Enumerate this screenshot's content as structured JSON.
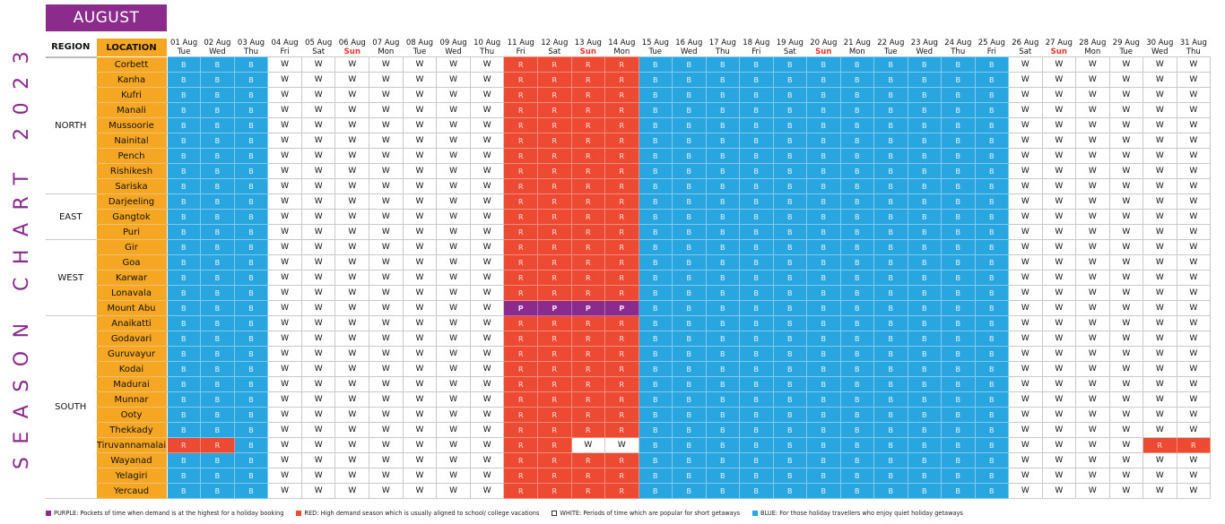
{
  "title": "SEASON CHART 2023",
  "month": "AUGUST",
  "headers": {
    "region": "REGION",
    "location": "LOCATION"
  },
  "colors": {
    "purple": "#8b2c8d",
    "red": "#ec4a32",
    "white": "#ffffff",
    "blue": "#29a6e0",
    "location_bg": "#f5a623"
  },
  "days": [
    {
      "date": "01 Aug",
      "weekday": "Tue"
    },
    {
      "date": "02 Aug",
      "weekday": "Wed"
    },
    {
      "date": "03 Aug",
      "weekday": "Thu"
    },
    {
      "date": "04 Aug",
      "weekday": "Fri"
    },
    {
      "date": "05 Aug",
      "weekday": "Sat"
    },
    {
      "date": "06 Aug",
      "weekday": "Sun"
    },
    {
      "date": "07 Aug",
      "weekday": "Mon"
    },
    {
      "date": "08 Aug",
      "weekday": "Tue"
    },
    {
      "date": "09 Aug",
      "weekday": "Wed"
    },
    {
      "date": "10 Aug",
      "weekday": "Thu"
    },
    {
      "date": "11 Aug",
      "weekday": "Fri"
    },
    {
      "date": "12 Aug",
      "weekday": "Sat"
    },
    {
      "date": "13 Aug",
      "weekday": "Sun"
    },
    {
      "date": "14 Aug",
      "weekday": "Mon"
    },
    {
      "date": "15 Aug",
      "weekday": "Tue"
    },
    {
      "date": "16 Aug",
      "weekday": "Wed"
    },
    {
      "date": "17 Aug",
      "weekday": "Thu"
    },
    {
      "date": "18 Aug",
      "weekday": "Fri"
    },
    {
      "date": "19 Aug",
      "weekday": "Sat"
    },
    {
      "date": "20 Aug",
      "weekday": "Sun"
    },
    {
      "date": "21 Aug",
      "weekday": "Mon"
    },
    {
      "date": "22 Aug",
      "weekday": "Tue"
    },
    {
      "date": "23 Aug",
      "weekday": "Wed"
    },
    {
      "date": "24 Aug",
      "weekday": "Thu"
    },
    {
      "date": "25 Aug",
      "weekday": "Fri"
    },
    {
      "date": "26 Aug",
      "weekday": "Sat"
    },
    {
      "date": "27 Aug",
      "weekday": "Sun"
    },
    {
      "date": "28 Aug",
      "weekday": "Mon"
    },
    {
      "date": "29 Aug",
      "weekday": "Tue"
    },
    {
      "date": "30 Aug",
      "weekday": "Wed"
    },
    {
      "date": "31 Aug",
      "weekday": "Thu"
    }
  ],
  "regions": [
    {
      "name": "NORTH",
      "locations": [
        {
          "name": "Corbett",
          "codes": "BBBWWWWWWWRRRRBBBBBBBBBBBWWWWWW"
        },
        {
          "name": "Kanha",
          "codes": "BBBWWWWWWWRRRRBBBBBBBBBBBWWWWWW"
        },
        {
          "name": "Kufri",
          "codes": "BBBWWWWWWWRRRRBBBBBBBBBBBWWWWWW"
        },
        {
          "name": "Manali",
          "codes": "BBBWWWWWWWRRRRBBBBBBBBBBBWWWWWW"
        },
        {
          "name": "Mussoorie",
          "codes": "BBBWWWWWWWRRRRBBBBBBBBBBBWWWWWW"
        },
        {
          "name": "Nainital",
          "codes": "BBBWWWWWWWRRRRBBBBBBBBBBBWWWWWW"
        },
        {
          "name": "Pench",
          "codes": "BBBWWWWWWWRRRRBBBBBBBBBBBWWWWWW"
        },
        {
          "name": "Rishikesh",
          "codes": "BBBWWWWWWWRRRRBBBBBBBBBBBWWWWWW"
        },
        {
          "name": "Sariska",
          "codes": "BBBWWWWWWWRRRRBBBBBBBBBBBWWWWWW"
        }
      ]
    },
    {
      "name": "EAST",
      "locations": [
        {
          "name": "Darjeeling",
          "codes": "BBBWWWWWWWRRRRBBBBBBBBBBBWWWWWW"
        },
        {
          "name": "Gangtok",
          "codes": "BBBWWWWWWWRRRRBBBBBBBBBBBWWWWWW"
        },
        {
          "name": "Puri",
          "codes": "BBBWWWWWWWRRRRBBBBBBBBBBBWWWWWW"
        }
      ]
    },
    {
      "name": "WEST",
      "locations": [
        {
          "name": "Gir",
          "codes": "BBBWWWWWWWRRRRBBBBBBBBBBBWWWWWW"
        },
        {
          "name": "Goa",
          "codes": "BBBWWWWWWWRRRRBBBBBBBBBBBWWWWWW"
        },
        {
          "name": "Karwar",
          "codes": "BBBWWWWWWWRRRRBBBBBBBBBBBWWWWWW"
        },
        {
          "name": "Lonavala",
          "codes": "BBBWWWWWWWRRRRBBBBBBBBBBBWWWWWW"
        },
        {
          "name": "Mount Abu",
          "codes": "BBBWWWWWWWPPPPBBBBBBBBBBBWWWWWW"
        }
      ]
    },
    {
      "name": "SOUTH",
      "locations": [
        {
          "name": "Anaikatti",
          "codes": "BBBWWWWWWWRRRRBBBBBBBBBBBWWWWWW"
        },
        {
          "name": "Godavari",
          "codes": "BBBWWWWWWWRRRRBBBBBBBBBBBWWWWWW"
        },
        {
          "name": "Guruvayur",
          "codes": "BBBWWWWWWWRRRRBBBBBBBBBBBWWWWWW"
        },
        {
          "name": "Kodai",
          "codes": "BBBWWWWWWWRRRRBBBBBBBBBBBWWWWWW"
        },
        {
          "name": "Madurai",
          "codes": "BBBWWWWWWWRRRRBBBBBBBBBBBWWWWWW"
        },
        {
          "name": "Munnar",
          "codes": "BBBWWWWWWWRRRRBBBBBBBBBBBWWWWWW"
        },
        {
          "name": "Ooty",
          "codes": "BBBWWWWWWWRRRRBBBBBBBBBBBWWWWWW"
        },
        {
          "name": "Thekkady",
          "codes": "BBBWWWWWWWRRRRBBBBBBBBBBBWWWWWW"
        },
        {
          "name": "Tiruvannamalai",
          "codes": "RRBWWWWWWWRRWWBBBBBBBBBBBWWWWRR"
        },
        {
          "name": "Wayanad",
          "codes": "BBBWWWWWWWRRRRBBBBBBBBBBBWWWWWW"
        },
        {
          "name": "Yelagiri",
          "codes": "BBBWWWWWWWRRRRBBBBBBBBBBBWWWWWW"
        },
        {
          "name": "Yercaud",
          "codes": "BBBWWWWWWWRRRRBBBBBBBBBBBWWWWWW"
        }
      ]
    }
  ],
  "legend": [
    {
      "key": "purple",
      "text": "PURPLE: Pockets of time when demand is at the highest for a holiday booking"
    },
    {
      "key": "red",
      "text": "RED: High demand season which is usually aligned to school/ college vacations"
    },
    {
      "key": "white",
      "text": "WHITE: Periods of time which are popular for short getaways"
    },
    {
      "key": "blue",
      "text": "BLUE: For those holiday travellers who enjoy quiet holiday getaways"
    }
  ]
}
